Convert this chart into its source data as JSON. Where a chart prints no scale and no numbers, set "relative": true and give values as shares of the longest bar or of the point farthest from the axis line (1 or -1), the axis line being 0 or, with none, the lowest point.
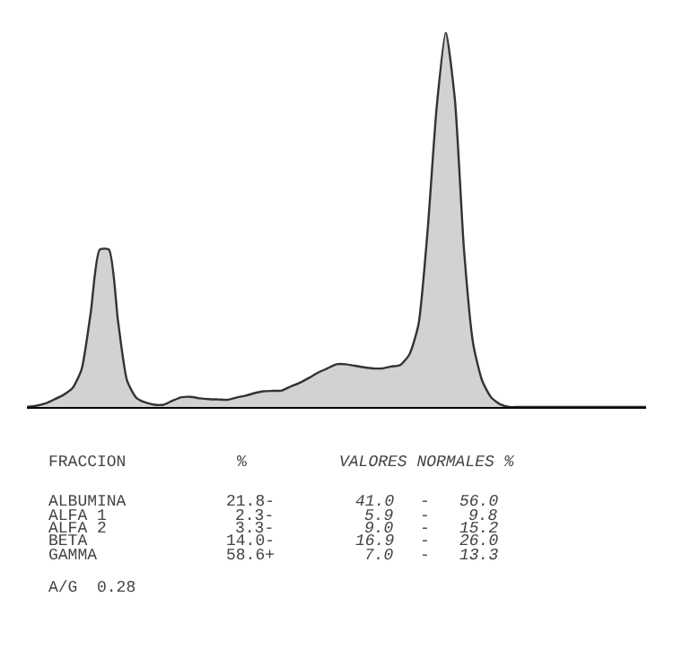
{
  "chart_data": {
    "type": "area",
    "relative": true,
    "categories": [
      null,
      null,
      null,
      null,
      null,
      null,
      null,
      null,
      null,
      null,
      null,
      null,
      null,
      null,
      null,
      null,
      null,
      null,
      null,
      null,
      null,
      null,
      null,
      null,
      null,
      null,
      null,
      null,
      null,
      null,
      null,
      null,
      null,
      null,
      null,
      null,
      null,
      null,
      null,
      null,
      null,
      null,
      null,
      null,
      null,
      null,
      null,
      null,
      null,
      null,
      null,
      null,
      null,
      null,
      null,
      null,
      null,
      null,
      null,
      null,
      null,
      null,
      null,
      null,
      null,
      null,
      null,
      null,
      null
    ],
    "series": [
      {
        "color": "#333333",
        "values": [
          0,
          0.003,
          0.009,
          0.02,
          0.032,
          0.05,
          0.1,
          0.25,
          0.42,
          0.42,
          0.23,
          0.07,
          0.025,
          0.012,
          0.006,
          0.006,
          0.017,
          0.026,
          0.027,
          0.023,
          0.021,
          0.02,
          0.019,
          0.025,
          0.03,
          0.037,
          0.042,
          0.043,
          0.044,
          0.055,
          0.065,
          0.078,
          0.092,
          0.103,
          0.114,
          0.114,
          0.11,
          0.106,
          0.103,
          0.103,
          0.108,
          0.112,
          0.14,
          0.22,
          0.47,
          0.8,
          1,
          0.82,
          0.42,
          0.17,
          0.07,
          0.025,
          0.007,
          0,
          0,
          0,
          0,
          0,
          0,
          0,
          0,
          0,
          0,
          0,
          0,
          0,
          0,
          0,
          0
        ]
      }
    ],
    "annotations": [
      "FRACCION",
      "%",
      "VALORES NORMALES %",
      "ALBUMINA",
      "21.8-",
      "41.0",
      "-",
      "56.0",
      "ALFA 1",
      "2.3-",
      "5.9",
      "-",
      "9.8",
      "ALFA 2",
      "3.3-",
      "9.0",
      "-",
      "15.2",
      "BETA",
      "14.0-",
      "16.9",
      "-",
      "26.0",
      "GAMMA",
      "58.6+",
      "7.0",
      "-",
      "13.3",
      "A/G  0.28"
    ]
  }
}
